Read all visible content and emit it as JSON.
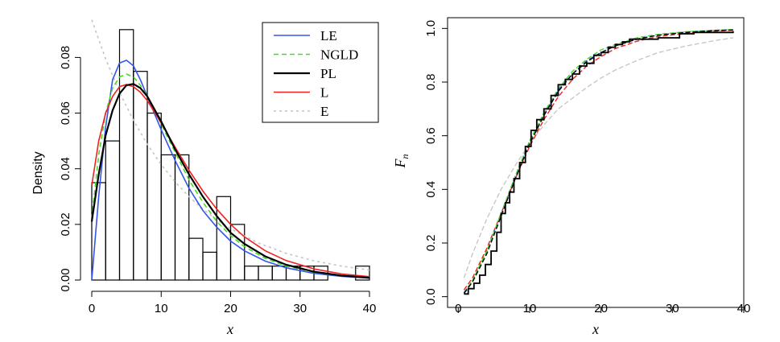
{
  "chart_data": [
    {
      "type": "histogram",
      "xlabel": "x",
      "ylabel": "Density",
      "xlim": [
        0,
        40
      ],
      "ylim": [
        0,
        0.094
      ],
      "xticks": [
        "0",
        "10",
        "20",
        "30",
        "40"
      ],
      "yticks": [
        "0.00",
        "0.02",
        "0.04",
        "0.06",
        "0.08"
      ],
      "bin_width": 2,
      "bins": [
        {
          "x0": 0,
          "x1": 2,
          "density": 0.035
        },
        {
          "x0": 2,
          "x1": 4,
          "density": 0.05
        },
        {
          "x0": 4,
          "x1": 6,
          "density": 0.09
        },
        {
          "x0": 6,
          "x1": 8,
          "density": 0.075
        },
        {
          "x0": 8,
          "x1": 10,
          "density": 0.06
        },
        {
          "x0": 10,
          "x1": 12,
          "density": 0.045
        },
        {
          "x0": 12,
          "x1": 14,
          "density": 0.045
        },
        {
          "x0": 14,
          "x1": 16,
          "density": 0.015
        },
        {
          "x0": 16,
          "x1": 18,
          "density": 0.01
        },
        {
          "x0": 18,
          "x1": 20,
          "density": 0.03
        },
        {
          "x0": 20,
          "x1": 22,
          "density": 0.02
        },
        {
          "x0": 22,
          "x1": 24,
          "density": 0.005
        },
        {
          "x0": 24,
          "x1": 26,
          "density": 0.005
        },
        {
          "x0": 26,
          "x1": 28,
          "density": 0.005
        },
        {
          "x0": 28,
          "x1": 30,
          "density": 0.005
        },
        {
          "x0": 30,
          "x1": 32,
          "density": 0.005
        },
        {
          "x0": 32,
          "x1": 34,
          "density": 0.005
        },
        {
          "x0": 34,
          "x1": 36,
          "density": 0.0
        },
        {
          "x0": 36,
          "x1": 38,
          "density": 0.0
        },
        {
          "x0": 38,
          "x1": 40,
          "density": 0.005
        }
      ],
      "series": [
        {
          "name": "LE",
          "color": "#3355ee",
          "dash": "solid",
          "points": [
            [
              0,
              0
            ],
            [
              1,
              0.03
            ],
            [
              2,
              0.055
            ],
            [
              3,
              0.072
            ],
            [
              4,
              0.078
            ],
            [
              5,
              0.079
            ],
            [
              6,
              0.077
            ],
            [
              7,
              0.072
            ],
            [
              8,
              0.066
            ],
            [
              10,
              0.054
            ],
            [
              12,
              0.043
            ],
            [
              14,
              0.033
            ],
            [
              16,
              0.025
            ],
            [
              18,
              0.019
            ],
            [
              20,
              0.014
            ],
            [
              22,
              0.0105
            ],
            [
              25,
              0.0068
            ],
            [
              28,
              0.0044
            ],
            [
              32,
              0.0024
            ],
            [
              36,
              0.0013
            ],
            [
              40,
              0.0007
            ]
          ]
        },
        {
          "name": "NGLD",
          "color": "#44dd22",
          "dash": "6,4",
          "points": [
            [
              0,
              0.022
            ],
            [
              1,
              0.045
            ],
            [
              2,
              0.06
            ],
            [
              3,
              0.069
            ],
            [
              4,
              0.073
            ],
            [
              5,
              0.074
            ],
            [
              6,
              0.073
            ],
            [
              7,
              0.07
            ],
            [
              8,
              0.066
            ],
            [
              10,
              0.056
            ],
            [
              12,
              0.046
            ],
            [
              14,
              0.036
            ],
            [
              16,
              0.028
            ],
            [
              18,
              0.021
            ],
            [
              20,
              0.016
            ],
            [
              22,
              0.012
            ],
            [
              25,
              0.0078
            ],
            [
              28,
              0.005
            ],
            [
              32,
              0.0028
            ],
            [
              36,
              0.0016
            ],
            [
              40,
              0.0009
            ]
          ]
        },
        {
          "name": "PL",
          "color": "#000000",
          "dash": "solid",
          "points": [
            [
              0,
              0.021
            ],
            [
              1,
              0.038
            ],
            [
              2,
              0.052
            ],
            [
              3,
              0.061
            ],
            [
              4,
              0.067
            ],
            [
              5,
              0.07
            ],
            [
              6,
              0.0705
            ],
            [
              7,
              0.069
            ],
            [
              8,
              0.066
            ],
            [
              10,
              0.057
            ],
            [
              12,
              0.047
            ],
            [
              14,
              0.038
            ],
            [
              16,
              0.03
            ],
            [
              18,
              0.023
            ],
            [
              20,
              0.017
            ],
            [
              22,
              0.013
            ],
            [
              25,
              0.0085
            ],
            [
              28,
              0.0055
            ],
            [
              32,
              0.003
            ],
            [
              36,
              0.0016
            ],
            [
              40,
              0.0008
            ]
          ]
        },
        {
          "name": "L",
          "color": "#ee2222",
          "dash": "solid",
          "points": [
            [
              0,
              0.034
            ],
            [
              1,
              0.05
            ],
            [
              2,
              0.06
            ],
            [
              3,
              0.066
            ],
            [
              4,
              0.0695
            ],
            [
              5,
              0.0703
            ],
            [
              6,
              0.0695
            ],
            [
              7,
              0.0675
            ],
            [
              8,
              0.0645
            ],
            [
              10,
              0.0565
            ],
            [
              12,
              0.0478
            ],
            [
              14,
              0.0395
            ],
            [
              16,
              0.032
            ],
            [
              18,
              0.0255
            ],
            [
              20,
              0.02
            ],
            [
              22,
              0.0155
            ],
            [
              25,
              0.0105
            ],
            [
              28,
              0.007
            ],
            [
              32,
              0.004
            ],
            [
              36,
              0.0022
            ],
            [
              40,
              0.0012
            ]
          ]
        },
        {
          "name": "E",
          "color": "#c4c4c4",
          "dash": "3,4",
          "points": [
            [
              0,
              0.0935
            ],
            [
              2,
              0.0795
            ],
            [
              4,
              0.0675
            ],
            [
              6,
              0.0574
            ],
            [
              8,
              0.0488
            ],
            [
              10,
              0.0415
            ],
            [
              12,
              0.0353
            ],
            [
              14,
              0.03
            ],
            [
              16,
              0.0255
            ],
            [
              18,
              0.0217
            ],
            [
              20,
              0.0184
            ],
            [
              24,
              0.0133
            ],
            [
              28,
              0.0096
            ],
            [
              32,
              0.0069
            ],
            [
              36,
              0.005
            ],
            [
              40,
              0.0036
            ]
          ]
        }
      ],
      "legend": {
        "position": "top-right",
        "entries": [
          "LE",
          "NGLD",
          "PL",
          "L",
          "E"
        ]
      }
    },
    {
      "type": "line",
      "xlabel": "x",
      "ylabel": "F",
      "ylabel_subscript": "n",
      "xlim": [
        -1.5,
        40
      ],
      "ylim": [
        -0.04,
        1.04
      ],
      "xticks": [
        "0",
        "10",
        "20",
        "30",
        "40"
      ],
      "yticks": [
        "0.0",
        "0.2",
        "0.4",
        "0.6",
        "0.8",
        "1.0"
      ],
      "ecdf": [
        [
          0.8,
          0.01
        ],
        [
          1.4,
          0.03
        ],
        [
          2.2,
          0.05
        ],
        [
          3.0,
          0.08
        ],
        [
          3.8,
          0.12
        ],
        [
          4.6,
          0.17
        ],
        [
          5.4,
          0.24
        ],
        [
          6.0,
          0.31
        ],
        [
          6.6,
          0.35
        ],
        [
          7.2,
          0.39
        ],
        [
          7.8,
          0.44
        ],
        [
          8.6,
          0.5
        ],
        [
          9.4,
          0.56
        ],
        [
          10.2,
          0.62
        ],
        [
          11.0,
          0.66
        ],
        [
          12.0,
          0.7
        ],
        [
          13.0,
          0.75
        ],
        [
          14.0,
          0.79
        ],
        [
          15.0,
          0.81
        ],
        [
          16.0,
          0.83
        ],
        [
          17.0,
          0.86
        ],
        [
          18.0,
          0.87
        ],
        [
          19.0,
          0.9
        ],
        [
          20.0,
          0.91
        ],
        [
          21.0,
          0.93
        ],
        [
          22.0,
          0.94
        ],
        [
          23.0,
          0.95
        ],
        [
          24.0,
          0.96
        ],
        [
          26.0,
          0.96
        ],
        [
          28.0,
          0.965
        ],
        [
          31.0,
          0.98
        ],
        [
          33.0,
          0.985
        ],
        [
          38.5,
          0.99
        ]
      ],
      "series": [
        {
          "name": "LE",
          "color": "#3355ee",
          "dash": "6,3",
          "points": [
            [
              0.8,
              0.015
            ],
            [
              2,
              0.06
            ],
            [
              4,
              0.17
            ],
            [
              6,
              0.31
            ],
            [
              8,
              0.45
            ],
            [
              10,
              0.58
            ],
            [
              12,
              0.68
            ],
            [
              14,
              0.77
            ],
            [
              16,
              0.83
            ],
            [
              18,
              0.88
            ],
            [
              20,
              0.91
            ],
            [
              22,
              0.935
            ],
            [
              25,
              0.96
            ],
            [
              28,
              0.975
            ],
            [
              32,
              0.987
            ],
            [
              36,
              0.993
            ],
            [
              38.5,
              0.995
            ]
          ]
        },
        {
          "name": "NGLD",
          "color": "#44dd22",
          "dash": "6,3",
          "points": [
            [
              0.8,
              0.012
            ],
            [
              2,
              0.06
            ],
            [
              4,
              0.17
            ],
            [
              6,
              0.31
            ],
            [
              8,
              0.45
            ],
            [
              10,
              0.58
            ],
            [
              12,
              0.685
            ],
            [
              14,
              0.775
            ],
            [
              16,
              0.84
            ],
            [
              18,
              0.885
            ],
            [
              20,
              0.92
            ],
            [
              22,
              0.94
            ],
            [
              25,
              0.965
            ],
            [
              28,
              0.978
            ],
            [
              32,
              0.988
            ],
            [
              36,
              0.993
            ],
            [
              38.5,
              0.996
            ]
          ]
        },
        {
          "name": "PL",
          "color": "#000000",
          "dash": "6,3",
          "points": [
            [
              0.8,
              0.012
            ],
            [
              2,
              0.055
            ],
            [
              4,
              0.16
            ],
            [
              6,
              0.3
            ],
            [
              8,
              0.44
            ],
            [
              10,
              0.57
            ],
            [
              12,
              0.675
            ],
            [
              14,
              0.765
            ],
            [
              16,
              0.83
            ],
            [
              18,
              0.875
            ],
            [
              20,
              0.91
            ],
            [
              22,
              0.935
            ],
            [
              25,
              0.96
            ],
            [
              28,
              0.975
            ],
            [
              32,
              0.985
            ],
            [
              36,
              0.992
            ],
            [
              38.5,
              0.994
            ]
          ]
        },
        {
          "name": "L",
          "color": "#ee2222",
          "dash": "6,3",
          "points": [
            [
              0.8,
              0.025
            ],
            [
              2,
              0.07
            ],
            [
              4,
              0.18
            ],
            [
              6,
              0.31
            ],
            [
              8,
              0.44
            ],
            [
              10,
              0.56
            ],
            [
              12,
              0.66
            ],
            [
              14,
              0.745
            ],
            [
              16,
              0.81
            ],
            [
              18,
              0.86
            ],
            [
              20,
              0.895
            ],
            [
              22,
              0.925
            ],
            [
              25,
              0.952
            ],
            [
              28,
              0.97
            ],
            [
              32,
              0.982
            ],
            [
              36,
              0.99
            ],
            [
              38.5,
              0.993
            ]
          ]
        },
        {
          "name": "E",
          "color": "#c8c8c8",
          "dash": "6,3",
          "points": [
            [
              0.8,
              0.07
            ],
            [
              2,
              0.16
            ],
            [
              4,
              0.29
            ],
            [
              6,
              0.4
            ],
            [
              8,
              0.49
            ],
            [
              10,
              0.57
            ],
            [
              12,
              0.64
            ],
            [
              14,
              0.7
            ],
            [
              16,
              0.74
            ],
            [
              18,
              0.78
            ],
            [
              20,
              0.815
            ],
            [
              22,
              0.845
            ],
            [
              25,
              0.88
            ],
            [
              28,
              0.91
            ],
            [
              32,
              0.935
            ],
            [
              36,
              0.955
            ],
            [
              38.5,
              0.965
            ]
          ]
        }
      ]
    }
  ]
}
